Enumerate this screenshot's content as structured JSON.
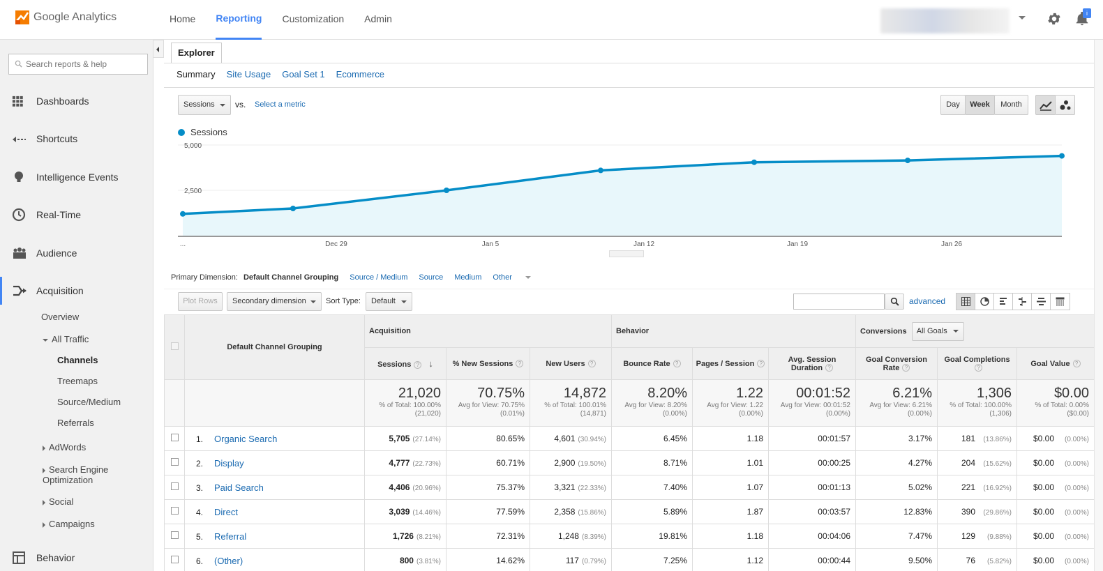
{
  "header": {
    "logo_text": "Google Analytics",
    "nav": [
      "Home",
      "Reporting",
      "Customization",
      "Admin"
    ],
    "active_nav": "Reporting",
    "bell_badge": "i"
  },
  "sidebar": {
    "search_placeholder": "Search reports & help",
    "items": [
      {
        "label": "Dashboards",
        "icon": "grid-icon"
      },
      {
        "label": "Shortcuts",
        "icon": "shortcut-arrow-icon"
      },
      {
        "label": "Intelligence Events",
        "icon": "lightbulb-icon"
      },
      {
        "label": "Real-Time",
        "icon": "clock-icon"
      },
      {
        "label": "Audience",
        "icon": "people-icon"
      },
      {
        "label": "Acquisition",
        "icon": "acquisition-arrows-icon"
      },
      {
        "label": "Behavior",
        "icon": "behavior-page-icon"
      }
    ],
    "acquisition_sub": {
      "overview": "Overview",
      "all_traffic": "All Traffic",
      "channels": "Channels",
      "treemaps": "Treemaps",
      "source_medium": "Source/Medium",
      "referrals": "Referrals",
      "adwords": "AdWords",
      "seo": "Search Engine Optimization",
      "social": "Social",
      "campaigns": "Campaigns"
    }
  },
  "explorer": {
    "tab": "Explorer",
    "subtabs": [
      "Summary",
      "Site Usage",
      "Goal Set 1",
      "Ecommerce"
    ],
    "metric_select": "Sessions",
    "vs": "vs.",
    "select_metric": "Select a metric",
    "granularity": [
      "Day",
      "Week",
      "Month"
    ],
    "active_granularity": "Week"
  },
  "chart_data": {
    "type": "area",
    "series": [
      {
        "name": "Sessions",
        "values": [
          1200,
          1500,
          2500,
          3600,
          4050,
          4150,
          4400
        ]
      }
    ],
    "x_tick_labels": [
      "...",
      "Dec 29",
      "Jan 5",
      "Jan 12",
      "Jan 19",
      "Jan 26"
    ],
    "y_tick_labels": [
      "5,000",
      "2,500"
    ],
    "ylim": [
      0,
      5000
    ],
    "grid": true,
    "line_color": "#058dc7",
    "fill_color": "#e8f7fb"
  },
  "primary_dimension": {
    "label": "Primary Dimension:",
    "current": "Default Channel Grouping",
    "options": [
      "Source / Medium",
      "Source",
      "Medium",
      "Other"
    ]
  },
  "toolbar": {
    "plot_rows": "Plot Rows",
    "secondary_dimension": "Secondary dimension",
    "sort_type_label": "Sort Type:",
    "sort_type": "Default",
    "advanced": "advanced"
  },
  "table": {
    "dimension_header": "Default Channel Grouping",
    "groups": {
      "acquisition": "Acquisition",
      "behavior": "Behavior",
      "conversions": "Conversions",
      "goals_select": "All Goals"
    },
    "columns": [
      "Sessions",
      "% New Sessions",
      "New Users",
      "Bounce Rate",
      "Pages / Session",
      "Avg. Session Duration",
      "Goal Conversion Rate",
      "Goal Completions",
      "Goal Value"
    ],
    "totals": [
      {
        "value": "21,020",
        "sub": "% of Total: 100.00% (21,020)"
      },
      {
        "value": "70.75%",
        "sub": "Avg for View: 70.75% (0.01%)"
      },
      {
        "value": "14,872",
        "sub": "% of Total: 100.01% (14,871)"
      },
      {
        "value": "8.20%",
        "sub": "Avg for View: 8.20% (0.00%)"
      },
      {
        "value": "1.22",
        "sub": "Avg for View: 1.22 (0.00%)"
      },
      {
        "value": "00:01:52",
        "sub": "Avg for View: 00:01:52 (0.00%)"
      },
      {
        "value": "6.21%",
        "sub": "Avg for View: 6.21% (0.00%)"
      },
      {
        "value": "1,306",
        "sub": "% of Total: 100.00% (1,306)"
      },
      {
        "value": "$0.00",
        "sub": "% of Total: 0.00% ($0.00)"
      }
    ],
    "rows": [
      {
        "idx": "1.",
        "name": "Organic Search",
        "sessions": "5,705",
        "sessions_pct": "(27.14%)",
        "new_sessions": "80.65%",
        "new_users": "4,601",
        "new_users_pct": "(30.94%)",
        "bounce": "6.45%",
        "pages": "1.18",
        "duration": "00:01:57",
        "conv_rate": "3.17%",
        "completions": "181",
        "completions_pct": "(13.86%)",
        "value": "$0.00",
        "value_pct": "(0.00%)"
      },
      {
        "idx": "2.",
        "name": "Display",
        "sessions": "4,777",
        "sessions_pct": "(22.73%)",
        "new_sessions": "60.71%",
        "new_users": "2,900",
        "new_users_pct": "(19.50%)",
        "bounce": "8.71%",
        "pages": "1.01",
        "duration": "00:00:25",
        "conv_rate": "4.27%",
        "completions": "204",
        "completions_pct": "(15.62%)",
        "value": "$0.00",
        "value_pct": "(0.00%)"
      },
      {
        "idx": "3.",
        "name": "Paid Search",
        "sessions": "4,406",
        "sessions_pct": "(20.96%)",
        "new_sessions": "75.37%",
        "new_users": "3,321",
        "new_users_pct": "(22.33%)",
        "bounce": "7.40%",
        "pages": "1.07",
        "duration": "00:01:13",
        "conv_rate": "5.02%",
        "completions": "221",
        "completions_pct": "(16.92%)",
        "value": "$0.00",
        "value_pct": "(0.00%)"
      },
      {
        "idx": "4.",
        "name": "Direct",
        "sessions": "3,039",
        "sessions_pct": "(14.46%)",
        "new_sessions": "77.59%",
        "new_users": "2,358",
        "new_users_pct": "(15.86%)",
        "bounce": "5.89%",
        "pages": "1.87",
        "duration": "00:03:57",
        "conv_rate": "12.83%",
        "completions": "390",
        "completions_pct": "(29.86%)",
        "value": "$0.00",
        "value_pct": "(0.00%)"
      },
      {
        "idx": "5.",
        "name": "Referral",
        "sessions": "1,726",
        "sessions_pct": "(8.21%)",
        "new_sessions": "72.31%",
        "new_users": "1,248",
        "new_users_pct": "(8.39%)",
        "bounce": "19.81%",
        "pages": "1.18",
        "duration": "00:04:06",
        "conv_rate": "7.47%",
        "completions": "129",
        "completions_pct": "(9.88%)",
        "value": "$0.00",
        "value_pct": "(0.00%)"
      },
      {
        "idx": "6.",
        "name": "(Other)",
        "sessions": "800",
        "sessions_pct": "(3.81%)",
        "new_sessions": "14.62%",
        "new_users": "117",
        "new_users_pct": "(0.79%)",
        "bounce": "7.25%",
        "pages": "1.12",
        "duration": "00:00:44",
        "conv_rate": "9.50%",
        "completions": "76",
        "completions_pct": "(5.82%)",
        "value": "$0.00",
        "value_pct": "(0.00%)"
      }
    ]
  }
}
